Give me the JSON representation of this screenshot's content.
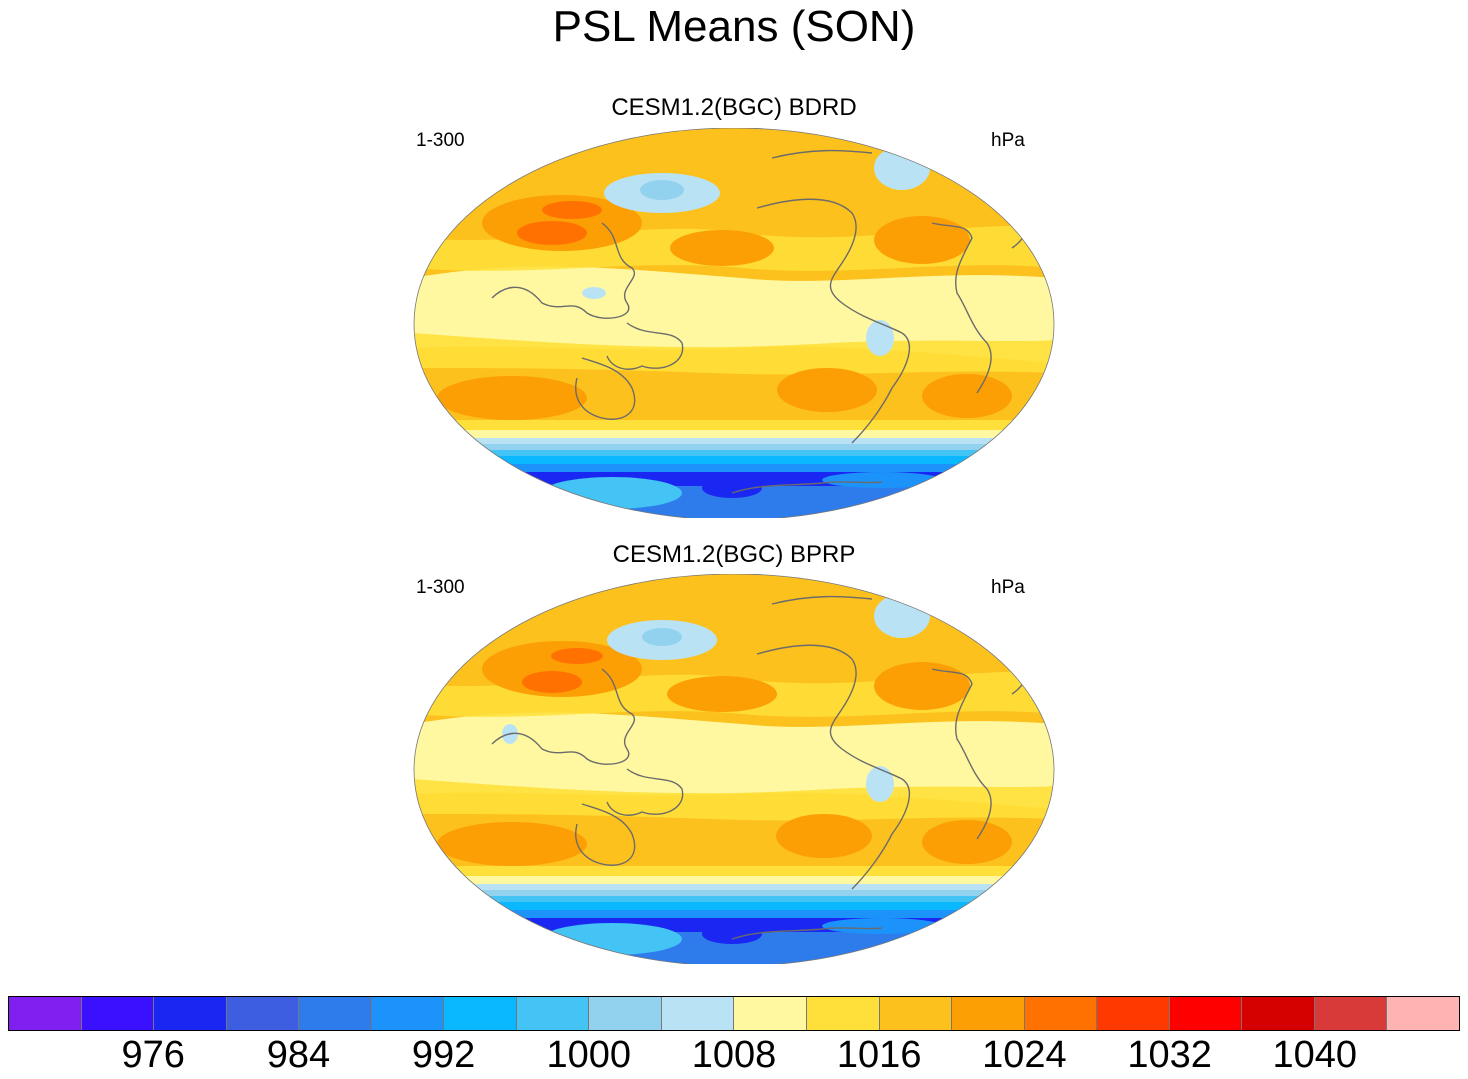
{
  "title": "PSL Means (SON)",
  "panels": [
    {
      "title": "CESM1.2(BGC) BDRD",
      "left_label": "1-300",
      "right_label": "hPa"
    },
    {
      "title": "CESM1.2(BGC) BPRP",
      "left_label": "1-300",
      "right_label": "hPa"
    }
  ],
  "colorbar": {
    "colors": [
      "#7f1ff0",
      "#3a10ff",
      "#1a27f2",
      "#3d5ee0",
      "#2e7cec",
      "#1c93fa",
      "#09b8ff",
      "#43c4f5",
      "#93d2ee",
      "#b9e3f4",
      "#fff8a0",
      "#ffe03a",
      "#fcc11d",
      "#fc9f05",
      "#ff7202",
      "#ff3a00",
      "#ff0000",
      "#d50000",
      "#d83a3a",
      "#ffb3b3"
    ],
    "labels": [
      "976",
      "984",
      "992",
      "1000",
      "1008",
      "1016",
      "1024",
      "1032",
      "1040"
    ]
  },
  "colors": {
    "ocean_pale": "#fff8a0",
    "yellow": "#ffe03a",
    "gold": "#fcc11d",
    "orange": "#fc9f05",
    "dark_orange": "#ff7202",
    "light_blue": "#b9e3f4",
    "mid_blue": "#93d2ee",
    "coast": "#6b6b6b"
  }
}
